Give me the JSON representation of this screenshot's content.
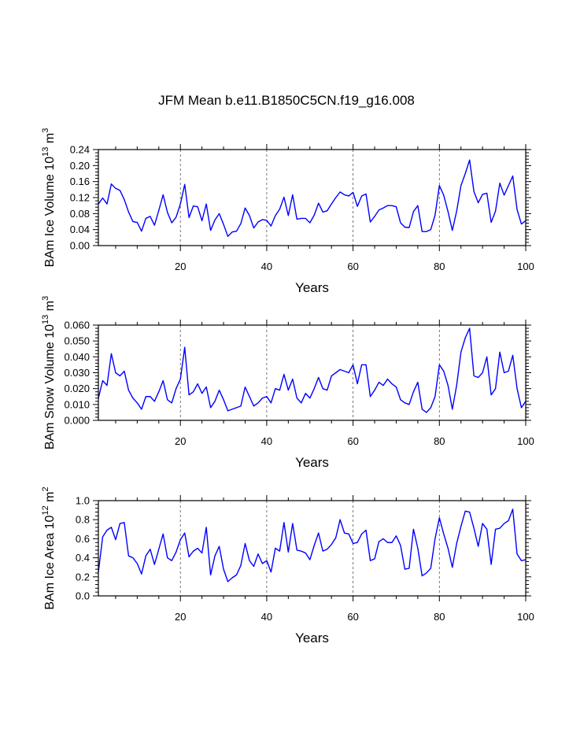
{
  "title": "JFM Mean b.e11.B1850C5CN.f19_g16.008",
  "colors": {
    "line": "#0000ff",
    "axis": "#000000",
    "grid": "#555555"
  },
  "chart_data": [
    {
      "type": "line",
      "name": "ice-volume",
      "ylabel": "BAm Ice Volume 10",
      "ylabel_sup": "13",
      "ylabel_unit": "m",
      "ylabel_unit_sup": "3",
      "xlabel": "Years",
      "xlim": [
        1,
        100
      ],
      "ylim": [
        0,
        0.24
      ],
      "xticks": [
        20,
        40,
        60,
        80,
        100
      ],
      "xtick_labels": [
        "20",
        "40",
        "60",
        "80",
        "100"
      ],
      "yticks": [
        0,
        0.04,
        0.08,
        0.12,
        0.16,
        0.2,
        0.24
      ],
      "ytick_labels": [
        "0.00",
        "0.04",
        "0.08",
        "0.12",
        "0.16",
        "0.20",
        "0.24"
      ],
      "vgrid": [
        20,
        40,
        60,
        80
      ],
      "values": [
        0.104,
        0.119,
        0.104,
        0.154,
        0.143,
        0.138,
        0.115,
        0.084,
        0.06,
        0.058,
        0.036,
        0.068,
        0.073,
        0.051,
        0.088,
        0.127,
        0.083,
        0.057,
        0.071,
        0.104,
        0.153,
        0.07,
        0.099,
        0.097,
        0.062,
        0.104,
        0.038,
        0.064,
        0.08,
        0.053,
        0.023,
        0.034,
        0.036,
        0.055,
        0.094,
        0.075,
        0.044,
        0.059,
        0.065,
        0.063,
        0.049,
        0.075,
        0.091,
        0.121,
        0.075,
        0.127,
        0.066,
        0.068,
        0.068,
        0.057,
        0.076,
        0.106,
        0.084,
        0.087,
        0.104,
        0.12,
        0.134,
        0.127,
        0.124,
        0.133,
        0.098,
        0.124,
        0.129,
        0.059,
        0.073,
        0.089,
        0.094,
        0.1,
        0.1,
        0.097,
        0.057,
        0.046,
        0.045,
        0.085,
        0.1,
        0.035,
        0.035,
        0.04,
        0.076,
        0.15,
        0.126,
        0.085,
        0.038,
        0.086,
        0.15,
        0.18,
        0.214,
        0.135,
        0.107,
        0.128,
        0.131,
        0.058,
        0.086,
        0.156,
        0.126,
        0.15,
        0.174,
        0.09,
        0.054,
        0.062
      ]
    },
    {
      "type": "line",
      "name": "snow-volume",
      "ylabel": "BAm Snow Volume 10",
      "ylabel_sup": "13",
      "ylabel_unit": "m",
      "ylabel_unit_sup": "3",
      "xlabel": "Years",
      "xlim": [
        1,
        100
      ],
      "ylim": [
        0,
        0.06
      ],
      "xticks": [
        20,
        40,
        60,
        80,
        100
      ],
      "xtick_labels": [
        "20",
        "40",
        "60",
        "80",
        "100"
      ],
      "yticks": [
        0,
        0.01,
        0.02,
        0.03,
        0.04,
        0.05,
        0.06
      ],
      "ytick_labels": [
        "0.000",
        "0.010",
        "0.020",
        "0.030",
        "0.040",
        "0.050",
        "0.060"
      ],
      "vgrid": [
        20,
        40,
        60,
        80
      ],
      "values": [
        0.014,
        0.025,
        0.022,
        0.042,
        0.03,
        0.028,
        0.031,
        0.019,
        0.014,
        0.011,
        0.007,
        0.015,
        0.015,
        0.012,
        0.018,
        0.025,
        0.013,
        0.011,
        0.02,
        0.026,
        0.046,
        0.016,
        0.018,
        0.023,
        0.017,
        0.021,
        0.008,
        0.012,
        0.019,
        0.013,
        0.006,
        0.007,
        0.008,
        0.009,
        0.021,
        0.015,
        0.009,
        0.011,
        0.014,
        0.015,
        0.011,
        0.02,
        0.019,
        0.029,
        0.019,
        0.026,
        0.014,
        0.011,
        0.017,
        0.014,
        0.02,
        0.027,
        0.02,
        0.019,
        0.028,
        0.03,
        0.032,
        0.031,
        0.03,
        0.035,
        0.023,
        0.035,
        0.035,
        0.015,
        0.019,
        0.024,
        0.022,
        0.026,
        0.023,
        0.021,
        0.013,
        0.011,
        0.01,
        0.018,
        0.024,
        0.007,
        0.005,
        0.008,
        0.015,
        0.035,
        0.031,
        0.022,
        0.007,
        0.022,
        0.043,
        0.052,
        0.058,
        0.028,
        0.027,
        0.03,
        0.04,
        0.016,
        0.02,
        0.043,
        0.03,
        0.031,
        0.041,
        0.02,
        0.008,
        0.012
      ]
    },
    {
      "type": "line",
      "name": "ice-area",
      "ylabel": "BAm Ice Area 10",
      "ylabel_sup": "12",
      "ylabel_unit": "m",
      "ylabel_unit_sup": "2",
      "xlabel": "Years",
      "xlim": [
        1,
        100
      ],
      "ylim": [
        0,
        1.0
      ],
      "xticks": [
        20,
        40,
        60,
        80,
        100
      ],
      "xtick_labels": [
        "20",
        "40",
        "60",
        "80",
        "100"
      ],
      "yticks": [
        0,
        0.2,
        0.4,
        0.6,
        0.8,
        1.0
      ],
      "ytick_labels": [
        "0.0",
        "0.2",
        "0.4",
        "0.6",
        "0.8",
        "1.0"
      ],
      "vgrid": [
        20,
        40,
        60,
        80
      ],
      "values": [
        0.25,
        0.62,
        0.69,
        0.72,
        0.59,
        0.76,
        0.77,
        0.42,
        0.4,
        0.34,
        0.23,
        0.42,
        0.49,
        0.33,
        0.49,
        0.65,
        0.4,
        0.37,
        0.46,
        0.59,
        0.66,
        0.41,
        0.47,
        0.5,
        0.45,
        0.72,
        0.22,
        0.42,
        0.52,
        0.28,
        0.15,
        0.19,
        0.22,
        0.32,
        0.55,
        0.37,
        0.31,
        0.44,
        0.34,
        0.37,
        0.25,
        0.5,
        0.47,
        0.77,
        0.46,
        0.76,
        0.48,
        0.47,
        0.45,
        0.38,
        0.53,
        0.66,
        0.47,
        0.49,
        0.54,
        0.61,
        0.8,
        0.66,
        0.65,
        0.55,
        0.56,
        0.65,
        0.69,
        0.37,
        0.39,
        0.57,
        0.6,
        0.56,
        0.56,
        0.63,
        0.53,
        0.28,
        0.29,
        0.7,
        0.5,
        0.21,
        0.24,
        0.29,
        0.6,
        0.82,
        0.65,
        0.5,
        0.3,
        0.55,
        0.73,
        0.89,
        0.88,
        0.71,
        0.52,
        0.76,
        0.7,
        0.33,
        0.7,
        0.71,
        0.76,
        0.79,
        0.91,
        0.44,
        0.37,
        0.38
      ]
    }
  ]
}
